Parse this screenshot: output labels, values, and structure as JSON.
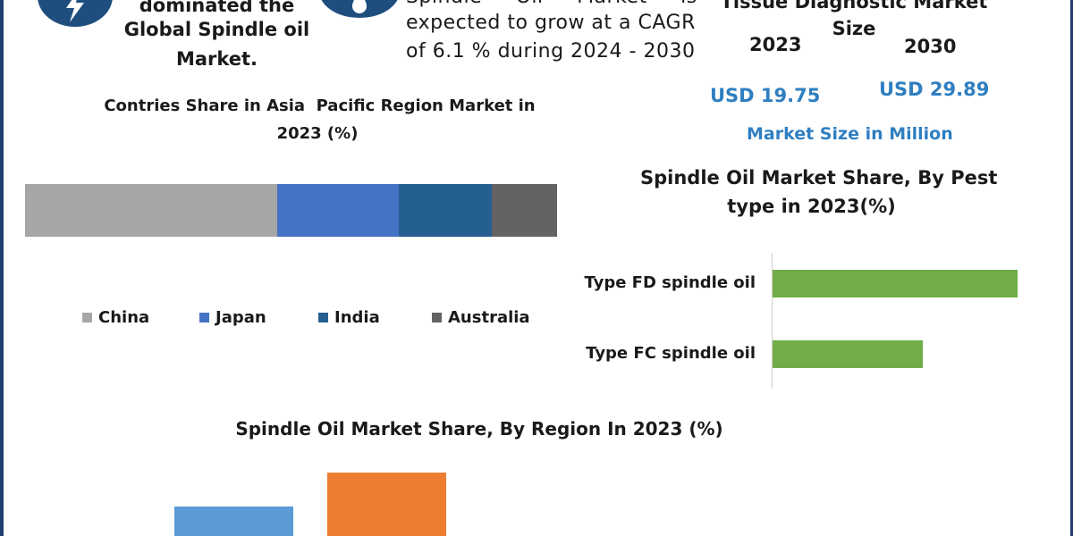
{
  "icons": {
    "left_icon": "lightning-bolt-icon",
    "mid_icon": "oil-drop-icon"
  },
  "dominance": {
    "line1": "dominated the",
    "line2": "Global Spindle oil",
    "line3": "Market."
  },
  "growth": {
    "line1": "Spindle     Oil     Market     is",
    "line2": "expected to grow at a CAGR",
    "line3": "of 6.1 % during 2024 - 2030"
  },
  "market_size": {
    "title_line1": "Tissue Diagnostic Market",
    "title_line2": "Size",
    "year_2023": "2023",
    "year_2030": "2030",
    "value_2023": "USD 19.75",
    "value_2030": "USD 29.89",
    "caption": "Market Size in Million"
  },
  "colors": {
    "navy": "#1f4e7e",
    "china": "#a6a6a6",
    "japan": "#4472c4",
    "india": "#255e91",
    "australia": "#636363",
    "green": "#70ad47",
    "orange": "#ed7d31",
    "light_blue": "#5b9bd5",
    "usd_blue": "#2f7fc1"
  },
  "chart_data": [
    {
      "type": "bar",
      "orientation": "horizontal-stacked",
      "title": "Contries Share in Asia  Pacific Region Market in 2023 (%)",
      "title_line1": "Contries Share in Asia  Pacific Region Market in",
      "title_line2": "2023 (%)",
      "series": [
        {
          "name": "China",
          "values": [
            47.4
          ]
        },
        {
          "name": "Japan",
          "values": [
            22.9
          ]
        },
        {
          "name": "India",
          "values": [
            17.5
          ]
        },
        {
          "name": "Australia",
          "values": [
            12.2
          ]
        }
      ],
      "legend_position": "bottom"
    },
    {
      "type": "bar",
      "orientation": "horizontal",
      "title": "Spindle Oil Market Share, By Pest type in 2023(%)",
      "title_line1": "Spindle Oil Market Share, By Pest",
      "title_line2": "type in 2023(%)",
      "categories": [
        "Type FD spindle oil",
        "Type FC spindle oil"
      ],
      "values": [
        62,
        38
      ]
    },
    {
      "type": "bar",
      "title": "Spindle Oil Market Share, By Region In 2023 (%)",
      "categories": [
        "",
        ""
      ],
      "values": [
        14,
        30
      ]
    }
  ]
}
